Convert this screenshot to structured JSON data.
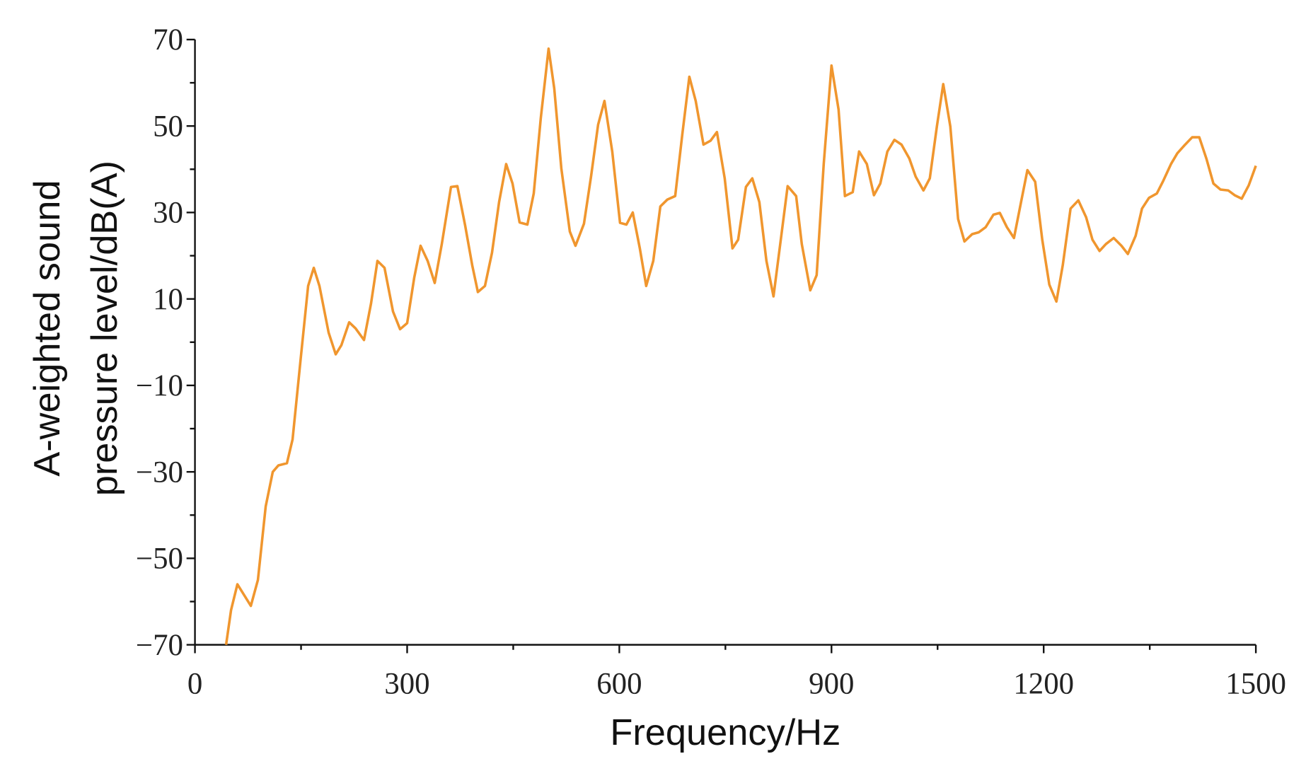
{
  "chart_data": {
    "type": "line",
    "xlabel": "Frequency/Hz",
    "ylabel": [
      "A-weighted sound",
      "pressure level/dB(A)"
    ],
    "xlim": [
      0,
      1500
    ],
    "xticks": [
      0,
      300,
      600,
      900,
      1200,
      1500
    ],
    "ylim": [
      -70,
      70
    ],
    "yticks": [
      {
        "value": -70,
        "label": "−70"
      },
      {
        "value": -50,
        "label": "−50"
      },
      {
        "value": -30,
        "label": "−30"
      },
      {
        "value": -10,
        "label": "−10"
      },
      10,
      30,
      50,
      70
    ],
    "series": [
      {
        "name": "A-weighted SPL",
        "color": "#f0962e",
        "x": [
          44,
          51,
          60,
          79,
          89,
          100,
          110,
          118,
          130,
          138,
          149,
          160,
          168,
          176,
          189,
          199,
          207,
          218,
          227,
          239,
          249,
          258,
          268,
          280,
          290,
          300,
          310,
          319,
          329,
          339,
          349,
          362,
          371,
          382,
          392,
          400,
          410,
          420,
          430,
          440,
          449,
          459,
          470,
          479,
          489,
          500,
          508,
          518,
          530,
          538,
          550,
          560,
          570,
          579,
          590,
          601,
          610,
          619,
          629,
          638,
          648,
          658,
          668,
          679,
          689,
          699,
          708,
          719,
          729,
          738,
          749,
          760,
          768,
          779,
          788,
          798,
          808,
          818,
          829,
          838,
          850,
          858,
          870,
          879,
          889,
          900,
          910,
          919,
          930,
          939,
          950,
          960,
          969,
          979,
          989,
          999,
          1010,
          1019,
          1030,
          1039,
          1049,
          1058,
          1068,
          1079,
          1088,
          1099,
          1108,
          1118,
          1129,
          1138,
          1148,
          1158,
          1168,
          1177,
          1188,
          1198,
          1208,
          1218,
          1227,
          1238,
          1249,
          1260,
          1269,
          1279,
          1288,
          1299,
          1310,
          1319,
          1330,
          1339,
          1349,
          1360,
          1369,
          1380,
          1389,
          1400,
          1410,
          1420,
          1430,
          1440,
          1450,
          1461,
          1470,
          1480,
          1490,
          1500
        ],
        "values": [
          -70,
          -62,
          -56,
          -61,
          -55,
          -38,
          -30,
          -28.5,
          -28,
          -22.5,
          -4.6,
          13,
          17.2,
          13,
          2.2,
          -2.8,
          -0.7,
          4.6,
          3.2,
          0.5,
          9,
          18.8,
          17.2,
          7.1,
          3,
          4.4,
          14.9,
          22.3,
          18.8,
          13.7,
          22.7,
          35.9,
          36.1,
          27,
          17.8,
          11.6,
          13,
          20.7,
          32.4,
          41.2,
          36.7,
          27.7,
          27.2,
          34.4,
          51.9,
          67.9,
          58.7,
          40.2,
          25.6,
          22.3,
          27.4,
          38.3,
          50.3,
          55.8,
          44.1,
          27.6,
          27.2,
          30,
          21.7,
          13,
          18.8,
          31.4,
          33,
          33.8,
          48,
          61.4,
          55.8,
          45.7,
          46.6,
          48.6,
          37.9,
          21.7,
          23.7,
          35.9,
          37.9,
          32.4,
          18.8,
          10.6,
          24.6,
          36.1,
          33.8,
          22.7,
          12,
          15.5,
          41.2,
          64,
          53.8,
          33.8,
          34.7,
          44.1,
          41.2,
          34,
          36.7,
          44.1,
          46.8,
          45.7,
          42.5,
          38.3,
          35.1,
          37.9,
          49.9,
          59.7,
          49.9,
          28.5,
          23.3,
          25,
          25.4,
          26.6,
          29.5,
          29.9,
          26.6,
          24.1,
          32.4,
          39.8,
          37.1,
          23.7,
          13.3,
          9.4,
          17.8,
          30.9,
          32.8,
          28.9,
          23.7,
          21.1,
          22.7,
          24.1,
          22.3,
          20.4,
          24.6,
          30.9,
          33.4,
          34.4,
          37.3,
          41.2,
          43.7,
          45.7,
          47.4,
          47.4,
          42.5,
          36.7,
          35.3,
          35.1,
          34,
          33.2,
          36.3,
          40.8
        ]
      }
    ]
  }
}
